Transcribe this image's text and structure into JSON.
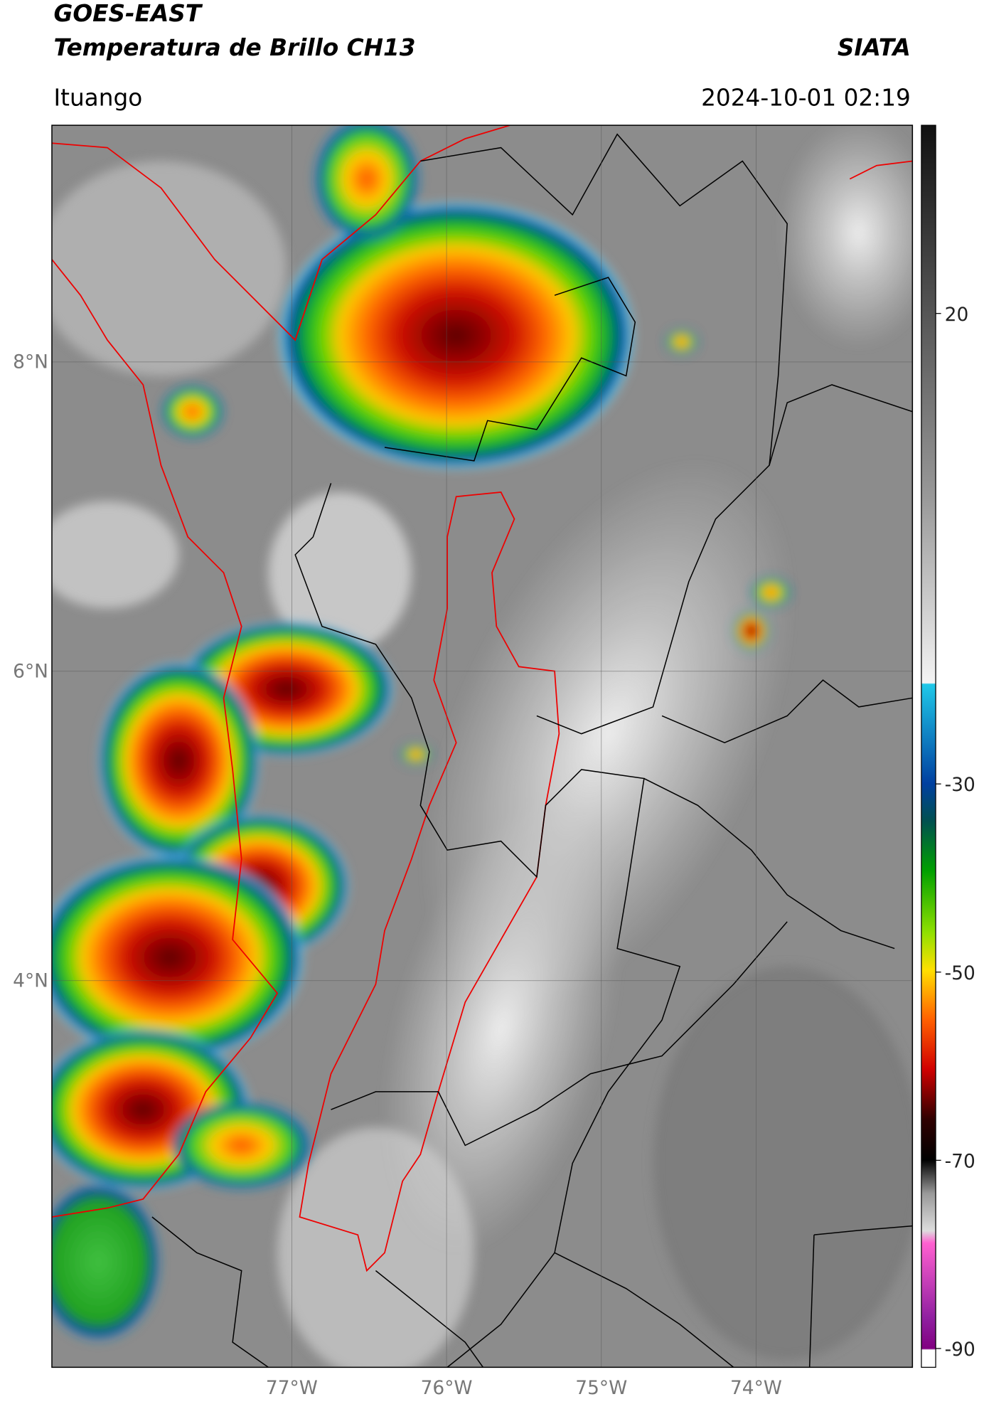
{
  "header": {
    "title": "GOES-EAST",
    "subtitle": "Temperatura de Brillo CH13",
    "source": "SIATA",
    "location": "Ituango",
    "datetime": "2024-10-01 02:19"
  },
  "map": {
    "lat_range": [
      1.5,
      9.53
    ],
    "lon_range": [
      -78.55,
      -72.99
    ],
    "lat_ticks": [
      {
        "value": 8,
        "label": "8°N"
      },
      {
        "value": 6,
        "label": "6°N"
      },
      {
        "value": 4,
        "label": "4°N"
      }
    ],
    "lon_ticks": [
      {
        "value": -77,
        "label": "77°W"
      },
      {
        "value": -76,
        "label": "76°W"
      },
      {
        "value": -75,
        "label": "75°W"
      },
      {
        "value": -74,
        "label": "74°W"
      }
    ]
  },
  "colorbar": {
    "range": [
      -92,
      40
    ],
    "ticks": [
      20,
      -30,
      -50,
      -70,
      -90
    ]
  }
}
